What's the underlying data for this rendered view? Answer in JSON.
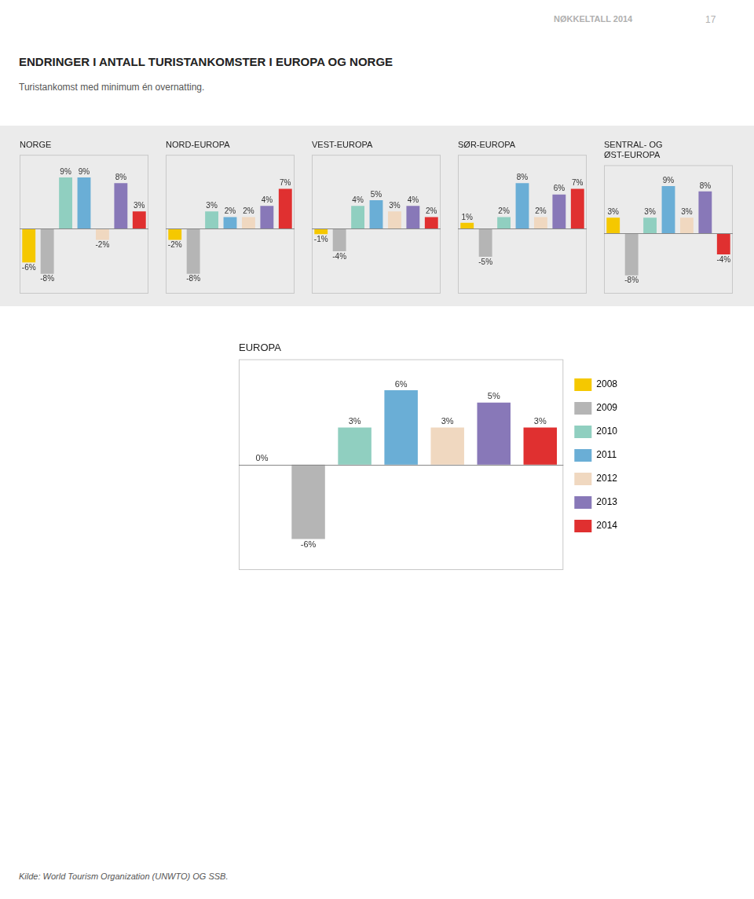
{
  "title": "ENDRINGER I ANTALL TURISTANKOMSTER I EUROPA OG NORGE",
  "subtitle": "Turistankomst med minimum én overnatting.",
  "annotations": [
    "NØKKELTALL 2014",
    "17",
    "Kilde: World Tourism Organization (UNWTO) OG SSB."
  ],
  "chart_data": [
    {
      "type": "bar",
      "title": "NORGE",
      "categories": [
        "2008",
        "2009",
        "2010",
        "2011",
        "2012",
        "2013",
        "2014"
      ],
      "values": [
        -6,
        -8,
        9,
        9,
        -2,
        8,
        3
      ],
      "value_labels": [
        "-6%",
        "-8%",
        "9%",
        "9%",
        "-2%",
        "8%",
        "3%"
      ],
      "colors": [
        "#f5c800",
        "#b5b5b5",
        "#90cfc0",
        "#6aaed6",
        "#f0d8c0",
        "#8878b8",
        "#e03030"
      ],
      "ylim": [
        -11.5,
        13.0
      ],
      "grid": false,
      "tick_labels": false,
      "data_labels": true
    },
    {
      "type": "bar",
      "title": "NORD-EUROPA",
      "categories": [
        "2008",
        "2009",
        "2010",
        "2011",
        "2012",
        "2013",
        "2014"
      ],
      "values": [
        -2,
        -8,
        3,
        2,
        2,
        4,
        7
      ],
      "value_labels": [
        "-2%",
        "-8%",
        "3%",
        "2%",
        "2%",
        "4%",
        "7%"
      ],
      "colors": [
        "#f5c800",
        "#b5b5b5",
        "#90cfc0",
        "#6aaed6",
        "#f0d8c0",
        "#8878b8",
        "#e03030"
      ],
      "ylim": [
        -11.5,
        13.0
      ],
      "grid": false,
      "tick_labels": false,
      "data_labels": true
    },
    {
      "type": "bar",
      "title": "VEST-EUROPA",
      "categories": [
        "2008",
        "2009",
        "2010",
        "2011",
        "2012",
        "2013",
        "2014"
      ],
      "values": [
        -1,
        -4,
        4,
        5,
        3,
        4,
        2
      ],
      "value_labels": [
        "-1%",
        "-4%",
        "4%",
        "5%",
        "3%",
        "4%",
        "2%"
      ],
      "colors": [
        "#f5c800",
        "#b5b5b5",
        "#90cfc0",
        "#6aaed6",
        "#f0d8c0",
        "#8878b8",
        "#e03030"
      ],
      "ylim": [
        -11.5,
        13.0
      ],
      "grid": false,
      "tick_labels": false,
      "data_labels": true
    },
    {
      "type": "bar",
      "title": "SØR-EUROPA",
      "categories": [
        "2008",
        "2009",
        "2010",
        "2011",
        "2012",
        "2013",
        "2014"
      ],
      "values": [
        1,
        -5,
        2,
        8,
        2,
        6,
        7
      ],
      "value_labels": [
        "1%",
        "-5%",
        "2%",
        "8%",
        "2%",
        "6%",
        "7%"
      ],
      "colors": [
        "#f5c800",
        "#b5b5b5",
        "#90cfc0",
        "#6aaed6",
        "#f0d8c0",
        "#8878b8",
        "#e03030"
      ],
      "ylim": [
        -11.5,
        13.0
      ],
      "grid": false,
      "tick_labels": false,
      "data_labels": true
    },
    {
      "type": "bar",
      "title": "SENTRAL- OG\nØST-EUROPA",
      "categories": [
        "2008",
        "2009",
        "2010",
        "2011",
        "2012",
        "2013",
        "2014"
      ],
      "values": [
        3,
        -8,
        3,
        9,
        3,
        8,
        -4
      ],
      "value_labels": [
        "3%",
        "-8%",
        "3%",
        "9%",
        "3%",
        "8%",
        "-4%"
      ],
      "colors": [
        "#f5c800",
        "#b5b5b5",
        "#90cfc0",
        "#6aaed6",
        "#f0d8c0",
        "#8878b8",
        "#e03030"
      ],
      "ylim": [
        -11.5,
        13.0
      ],
      "grid": false,
      "tick_labels": false,
      "data_labels": true
    },
    {
      "type": "bar",
      "title": "EUROPA",
      "categories": [
        "2008",
        "2009",
        "2010",
        "2011",
        "2012",
        "2013",
        "2014"
      ],
      "values": [
        0,
        -6,
        3,
        6,
        3,
        5,
        3
      ],
      "value_labels": [
        "0%",
        "-6%",
        "3%",
        "6%",
        "3%",
        "5%",
        "3%"
      ],
      "colors": [
        "#f5c800",
        "#b5b5b5",
        "#90cfc0",
        "#6aaed6",
        "#f0d8c0",
        "#8878b8",
        "#e03030"
      ],
      "ylim": [
        -8.5,
        8.5
      ],
      "grid": false,
      "tick_labels": false,
      "data_labels": true,
      "legend": "right"
    }
  ]
}
